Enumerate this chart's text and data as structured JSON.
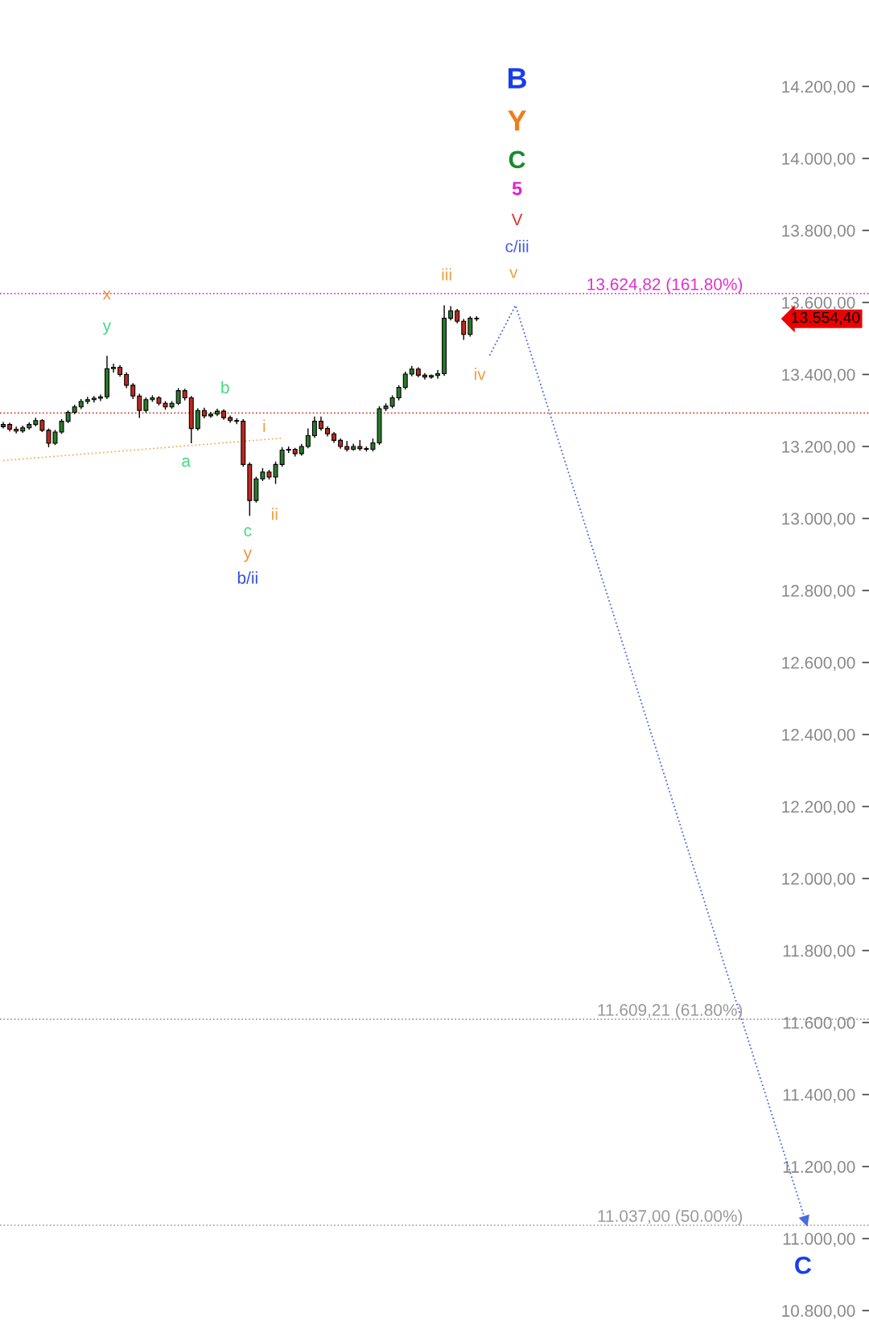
{
  "chart_data": {
    "type": "candlestick",
    "categories": [
      null,
      null,
      null,
      null,
      null,
      null,
      null,
      null,
      null,
      null,
      null,
      null,
      null,
      null,
      null,
      null,
      null,
      null,
      null,
      null,
      null,
      null,
      null,
      null,
      null,
      null,
      null,
      null,
      null,
      null,
      null,
      null,
      null,
      null,
      null,
      null,
      null,
      null,
      null,
      null,
      null,
      null,
      null,
      null,
      null,
      null,
      null,
      null,
      null,
      null,
      null,
      null,
      null,
      null,
      null,
      null,
      null,
      null,
      null,
      null,
      null,
      null,
      null,
      null,
      null,
      null,
      null,
      null,
      null,
      null,
      null,
      null,
      null,
      null,
      null,
      null,
      null,
      null,
      null,
      null,
      null,
      null,
      null,
      null,
      null,
      null,
      null,
      null,
      null,
      null,
      null,
      null,
      null,
      null,
      null,
      null,
      null,
      null,
      null,
      null,
      null,
      null,
      null,
      null,
      null,
      null,
      null,
      null,
      null,
      null,
      null,
      null,
      null,
      null,
      null,
      null,
      null,
      null,
      null,
      null,
      null,
      null,
      null,
      null,
      null,
      null,
      null,
      null,
      null,
      null,
      null,
      null,
      null,
      null
    ],
    "ohlc": [
      [
        13255,
        13268,
        13250,
        13261
      ],
      [
        13261,
        13266,
        13242,
        13248
      ],
      [
        13248,
        13255,
        13236,
        13243
      ],
      [
        13243,
        13258,
        13238,
        13252
      ],
      [
        13252,
        13267,
        13247,
        13261
      ],
      [
        13261,
        13280,
        13256,
        13272
      ],
      [
        13272,
        13276,
        13240,
        13245
      ],
      [
        13245,
        13250,
        13198,
        13209
      ],
      [
        13209,
        13246,
        13204,
        13240
      ],
      [
        13240,
        13276,
        13235,
        13270
      ],
      [
        13270,
        13300,
        13265,
        13295
      ],
      [
        13295,
        13316,
        13290,
        13310
      ],
      [
        13310,
        13332,
        13304,
        13325
      ],
      [
        13325,
        13338,
        13318,
        13330
      ],
      [
        13330,
        13340,
        13322,
        13334
      ],
      [
        13334,
        13344,
        13326,
        13338
      ],
      [
        13338,
        13452,
        13332,
        13416
      ],
      [
        13416,
        13430,
        13405,
        13420
      ],
      [
        13420,
        13426,
        13394,
        13400
      ],
      [
        13400,
        13406,
        13362,
        13370
      ],
      [
        13370,
        13376,
        13332,
        13340
      ],
      [
        13340,
        13346,
        13279,
        13300
      ],
      [
        13300,
        13336,
        13294,
        13330
      ],
      [
        13330,
        13342,
        13324,
        13335
      ],
      [
        13335,
        13340,
        13314,
        13320
      ],
      [
        13320,
        13326,
        13302,
        13310
      ],
      [
        13310,
        13326,
        13305,
        13320
      ],
      [
        13320,
        13362,
        13315,
        13355
      ],
      [
        13355,
        13360,
        13328,
        13335
      ],
      [
        13335,
        13340,
        13209,
        13250
      ],
      [
        13250,
        13306,
        13244,
        13300
      ],
      [
        13300,
        13308,
        13278,
        13285
      ],
      [
        13285,
        13296,
        13280,
        13290
      ],
      [
        13290,
        13305,
        13284,
        13298
      ],
      [
        13298,
        13303,
        13274,
        13280
      ],
      [
        13280,
        13286,
        13266,
        13272
      ],
      [
        13272,
        13278,
        13262,
        13270
      ],
      [
        13270,
        13276,
        13144,
        13150
      ],
      [
        13150,
        13156,
        13007,
        13050
      ],
      [
        13050,
        13116,
        13044,
        13110
      ],
      [
        13110,
        13140,
        13104,
        13129
      ],
      [
        13129,
        13135,
        13108,
        13115
      ],
      [
        13115,
        13158,
        13096,
        13150
      ],
      [
        13150,
        13198,
        13144,
        13190
      ],
      [
        13190,
        13200,
        13182,
        13192
      ],
      [
        13192,
        13196,
        13172,
        13180
      ],
      [
        13180,
        13207,
        13174,
        13200
      ],
      [
        13200,
        13250,
        13195,
        13230
      ],
      [
        13230,
        13283,
        13224,
        13270
      ],
      [
        13270,
        13283,
        13244,
        13250
      ],
      [
        13250,
        13256,
        13228,
        13235
      ],
      [
        13235,
        13240,
        13210,
        13217
      ],
      [
        13217,
        13222,
        13194,
        13200
      ],
      [
        13200,
        13215,
        13186,
        13192
      ],
      [
        13192,
        13208,
        13188,
        13200
      ],
      [
        13200,
        13218,
        13188,
        13194
      ],
      [
        13194,
        13200,
        13186,
        13192
      ],
      [
        13192,
        13222,
        13186,
        13210
      ],
      [
        13210,
        13312,
        13204,
        13305
      ],
      [
        13305,
        13320,
        13298,
        13312
      ],
      [
        13312,
        13342,
        13306,
        13335
      ],
      [
        13335,
        13370,
        13328,
        13364
      ],
      [
        13364,
        13408,
        13358,
        13401
      ],
      [
        13401,
        13424,
        13395,
        13415
      ],
      [
        13415,
        13420,
        13392,
        13398
      ],
      [
        13398,
        13404,
        13386,
        13393
      ],
      [
        13393,
        13400,
        13388,
        13397
      ],
      [
        13397,
        13412,
        13388,
        13402
      ],
      [
        13402,
        13592,
        13396,
        13556
      ],
      [
        13556,
        13590,
        13550,
        13577
      ],
      [
        13577,
        13582,
        13542,
        13548
      ],
      [
        13548,
        13554,
        13496,
        13511
      ],
      [
        13511,
        13562,
        13505,
        13556
      ],
      [
        13556,
        13562,
        13548,
        13554.4
      ],
      null,
      null,
      null,
      null,
      null,
      null,
      null,
      null,
      null,
      null,
      null,
      null,
      null,
      null,
      null,
      null,
      null,
      null,
      null,
      null,
      null,
      null,
      null,
      null,
      null,
      null,
      null,
      null,
      null,
      null,
      null,
      null,
      null,
      null,
      null,
      null,
      null,
      null,
      null,
      null,
      null,
      null,
      null,
      null,
      null,
      null,
      null,
      null,
      null,
      null,
      null,
      null,
      null,
      null,
      null,
      null,
      null,
      null,
      null,
      null
    ],
    "colors": [
      "#2a7a2a",
      "#c0281e",
      "#c0281e",
      "#2a7a2a",
      "#2a7a2a",
      "#2a7a2a",
      "#c0281e",
      "#c0281e",
      "#2a7a2a",
      "#2a7a2a",
      "#2a7a2a",
      "#2a7a2a",
      "#2a7a2a",
      "#2a7a2a",
      "#2a7a2a",
      "#2a7a2a",
      "#2a7a2a",
      "#2a7a2a",
      "#c0281e",
      "#c0281e",
      "#c0281e",
      "#c0281e",
      "#2a7a2a",
      "#2a7a2a",
      "#c0281e",
      "#c0281e",
      "#2a7a2a",
      "#2a7a2a",
      "#c0281e",
      "#c0281e",
      "#2a7a2a",
      "#c0281e",
      "#2a7a2a",
      "#2a7a2a",
      "#c0281e",
      "#c0281e",
      "#c0281e",
      "#c0281e",
      "#c0281e",
      "#2a7a2a",
      "#2a7a2a",
      "#c0281e",
      "#2a7a2a",
      "#2a7a2a",
      "#2a7a2a",
      "#c0281e",
      "#2a7a2a",
      "#2a7a2a",
      "#2a7a2a",
      "#c0281e",
      "#c0281e",
      "#c0281e",
      "#c0281e",
      "#c0281e",
      "#2a7a2a",
      "#c0281e",
      "#c0281e",
      "#2a7a2a",
      "#2a7a2a",
      "#2a7a2a",
      "#2a7a2a",
      "#2a7a2a",
      "#2a7a2a",
      "#2a7a2a",
      "#c0281e",
      "#c0281e",
      "#2a7a2a",
      "#2a7a2a",
      "#2a7a2a",
      "#2a7a2a",
      "#c0281e",
      "#c0281e",
      "#2a7a2a",
      "#c0281e",
      null,
      null,
      null,
      null,
      null,
      null,
      null,
      null,
      null,
      null,
      null,
      null,
      null,
      null,
      null,
      null,
      null,
      null,
      null,
      null,
      null,
      null,
      null,
      null,
      null,
      null,
      null,
      null,
      null,
      null,
      null,
      null,
      null,
      null,
      null,
      null,
      null,
      null,
      null,
      null,
      null,
      null,
      null,
      null,
      null,
      null,
      null,
      null,
      null,
      null,
      null,
      null,
      null,
      null,
      null,
      null,
      null,
      null,
      null,
      null
    ],
    "series": [
      {
        "type": "line",
        "color": "#4a6ae0",
        "line_style": "dotted",
        "values": [
          null,
          null,
          null,
          null,
          null,
          null,
          null,
          null,
          null,
          null,
          null,
          null,
          null,
          null,
          null,
          null,
          null,
          null,
          null,
          null,
          null,
          null,
          null,
          null,
          null,
          null,
          null,
          null,
          null,
          null,
          null,
          null,
          null,
          null,
          null,
          null,
          null,
          null,
          null,
          null,
          null,
          null,
          null,
          null,
          null,
          null,
          null,
          null,
          null,
          null,
          null,
          null,
          null,
          null,
          null,
          null,
          null,
          null,
          null,
          null,
          null,
          null,
          null,
          null,
          null,
          null,
          null,
          null,
          null,
          null,
          null,
          null,
          null,
          null,
          null,
          13453,
          null,
          null,
          null,
          13592,
          null,
          null,
          null,
          null,
          null,
          null,
          null,
          null,
          null,
          null,
          null,
          null,
          null,
          null,
          null,
          null,
          null,
          null,
          null,
          null,
          null,
          null,
          null,
          null,
          null,
          null,
          null,
          null,
          null,
          null,
          null,
          null,
          null,
          null,
          null,
          null,
          null,
          null,
          null,
          null,
          null,
          null,
          null,
          null,
          11033,
          null,
          null,
          null,
          null,
          null,
          null,
          null,
          null,
          null
        ]
      },
      {
        "type": "line",
        "color": "#f5b060",
        "line_style": "dotted",
        "values": [
          13161,
          null,
          null,
          null,
          null,
          null,
          null,
          null,
          null,
          null,
          null,
          null,
          null,
          null,
          null,
          null,
          null,
          null,
          null,
          null,
          null,
          null,
          null,
          null,
          null,
          null,
          null,
          null,
          null,
          null,
          null,
          null,
          null,
          null,
          null,
          null,
          null,
          null,
          null,
          null,
          null,
          null,
          null,
          13223,
          null,
          null,
          null,
          null,
          null,
          null,
          null,
          null,
          null,
          null,
          null,
          null,
          null,
          null,
          null,
          null,
          null,
          null,
          null,
          null,
          null,
          null,
          null,
          null,
          null,
          null,
          null,
          null,
          null,
          null,
          null,
          null,
          null,
          null,
          null,
          null,
          null,
          null,
          null,
          null,
          null,
          null,
          null,
          null,
          null,
          null,
          null,
          null,
          null,
          null,
          null,
          null,
          null,
          null,
          null,
          null,
          null,
          null,
          null,
          null,
          null,
          null,
          null,
          null,
          null,
          null,
          null,
          null,
          null,
          null,
          null,
          null,
          null,
          null,
          null,
          null,
          null,
          null,
          null,
          null,
          null,
          null,
          null,
          null,
          null,
          null,
          null,
          null,
          null,
          null
        ]
      }
    ],
    "ylim": [
      10760,
      14440
    ],
    "yticks": [
      {
        "value": 14200,
        "label": "14.200,00"
      },
      {
        "value": 14000,
        "label": "14.000,00"
      },
      {
        "value": 13800,
        "label": "13.800,00"
      },
      {
        "value": 13600,
        "label": "13.600,00"
      },
      {
        "value": 13400,
        "label": "13.400,00"
      },
      {
        "value": 13200,
        "label": "13.200,00"
      },
      {
        "value": 13000,
        "label": "13.000,00"
      },
      {
        "value": 12800,
        "label": "12.800,00"
      },
      {
        "value": 12600,
        "label": "12.600,00"
      },
      {
        "value": 12400,
        "label": "12.400,00"
      },
      {
        "value": 12200,
        "label": "12.200,00"
      },
      {
        "value": 12000,
        "label": "12.000,00"
      },
      {
        "value": 11800,
        "label": "11.800,00"
      },
      {
        "value": 11600,
        "label": "11.600,00"
      },
      {
        "value": 11400,
        "label": "11.400,00"
      },
      {
        "value": 11200,
        "label": "11.200,00"
      },
      {
        "value": 11000,
        "label": "11.000,00"
      },
      {
        "value": 10800,
        "label": "10.800,00"
      }
    ],
    "tick_labels": "y",
    "grid": false,
    "ref_lines": [
      {
        "axis": "y",
        "value": 13624.82,
        "label": "13.624,82 (161.80%)",
        "color": "#e030d0",
        "line_style": "dotted"
      },
      {
        "axis": "y",
        "value": 13293,
        "color": "#d04030",
        "line_style": "dotted"
      },
      {
        "axis": "y",
        "value": 11609.21,
        "label": "11.609,21 (61.80%)",
        "color": "#999999",
        "line_style": "dotted"
      },
      {
        "axis": "y",
        "value": 11037,
        "label": "11.037,00 (50.00%)",
        "color": "#999999",
        "line_style": "dotted"
      }
    ],
    "annotations": [
      "x",
      "y",
      "a",
      "b",
      "i",
      "c",
      "y",
      "b/ii",
      "ii",
      "iii",
      "iv",
      "B",
      "Y",
      "C",
      "5",
      "V",
      "c/iii",
      "v",
      "C",
      "13.554,40"
    ]
  }
}
